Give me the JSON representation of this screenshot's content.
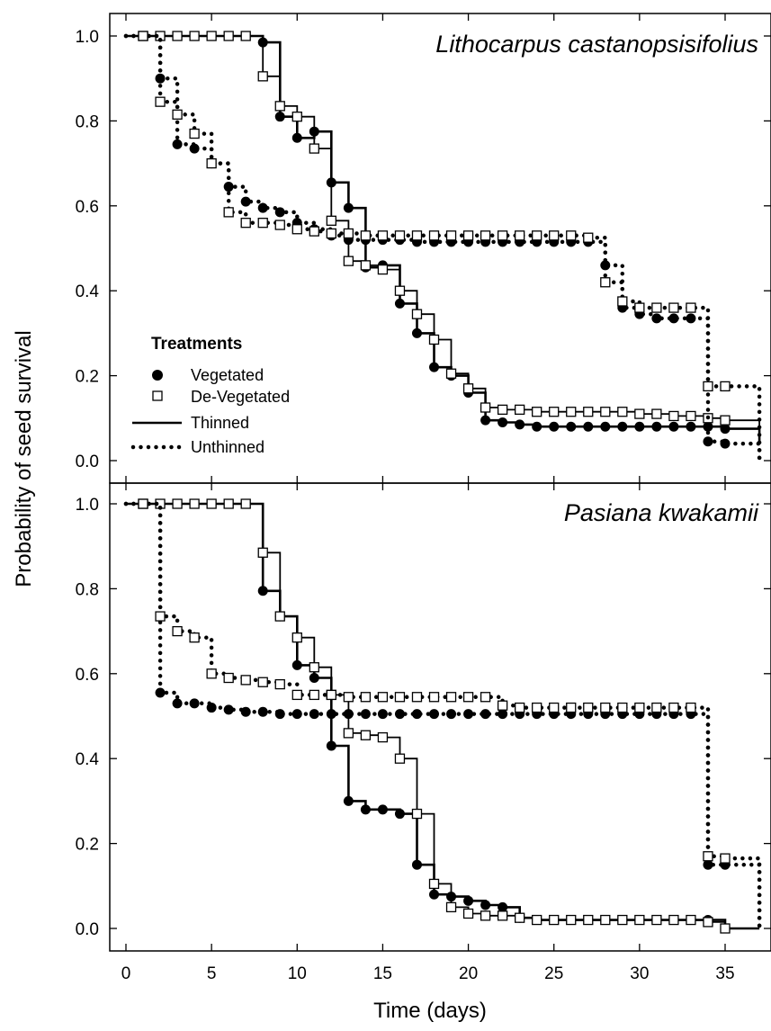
{
  "chart_data": [
    {
      "type": "line",
      "subtype": "step (Kaplan-Meier survival)",
      "title": "Lithocarpus castanopsisifolius",
      "xlabel": "Time (days)",
      "ylabel": "Probability of seed survival",
      "xlim": [
        -1,
        38
      ],
      "ylim": [
        -0.05,
        1.05
      ],
      "xticks": [
        0,
        5,
        10,
        15,
        20,
        25,
        30,
        35
      ],
      "xtick_labels": [
        "0",
        "5",
        "10",
        "15",
        "20",
        "25",
        "30",
        "35"
      ],
      "yticks": [
        0.0,
        0.2,
        0.4,
        0.6,
        0.8,
        1.0
      ],
      "ytick_labels": [
        "0.0",
        "0.2",
        "0.4",
        "0.6",
        "0.8",
        "1.0"
      ],
      "series": [
        {
          "name": "Vegetated Thinned",
          "x": [
            0,
            1,
            2,
            3,
            4,
            5,
            6,
            7,
            8,
            9,
            10,
            11,
            12,
            13,
            14,
            15,
            16,
            17,
            18,
            19,
            20,
            21,
            22,
            23,
            24,
            25,
            26,
            27,
            28,
            29,
            30,
            31,
            32,
            33,
            34,
            35,
            37
          ],
          "y": [
            1.0,
            1.0,
            1.0,
            1.0,
            1.0,
            1.0,
            1.0,
            1.0,
            0.985,
            0.81,
            0.76,
            0.775,
            0.655,
            0.595,
            0.455,
            0.46,
            0.37,
            0.3,
            0.22,
            0.2,
            0.16,
            0.095,
            0.09,
            0.085,
            0.08,
            0.08,
            0.08,
            0.08,
            0.08,
            0.08,
            0.08,
            0.08,
            0.08,
            0.08,
            0.08,
            0.075,
            0.04
          ]
        },
        {
          "name": "De-Vegetated Thinned",
          "x": [
            0,
            1,
            2,
            3,
            4,
            5,
            6,
            7,
            8,
            9,
            10,
            11,
            12,
            13,
            14,
            15,
            16,
            17,
            18,
            19,
            20,
            21,
            22,
            23,
            24,
            25,
            26,
            27,
            28,
            29,
            30,
            31,
            32,
            33,
            34,
            35,
            37
          ],
          "y": [
            1.0,
            1.0,
            1.0,
            1.0,
            1.0,
            1.0,
            1.0,
            1.0,
            0.905,
            0.835,
            0.81,
            0.735,
            0.565,
            0.47,
            0.46,
            0.45,
            0.4,
            0.345,
            0.285,
            0.205,
            0.17,
            0.125,
            0.12,
            0.12,
            0.115,
            0.115,
            0.115,
            0.115,
            0.115,
            0.115,
            0.11,
            0.11,
            0.105,
            0.105,
            0.1,
            0.095,
            0.055
          ]
        },
        {
          "name": "Vegetated Unthinned",
          "x": [
            0,
            1,
            2,
            3,
            4,
            5,
            6,
            7,
            8,
            9,
            10,
            11,
            12,
            13,
            14,
            15,
            16,
            17,
            18,
            19,
            20,
            21,
            22,
            23,
            24,
            25,
            26,
            27,
            28,
            29,
            30,
            31,
            32,
            33,
            34,
            35,
            37
          ],
          "y": [
            1.0,
            1.0,
            0.9,
            0.745,
            0.735,
            0.7,
            0.645,
            0.61,
            0.595,
            0.585,
            0.56,
            0.545,
            0.53,
            0.52,
            0.52,
            0.52,
            0.52,
            0.515,
            0.515,
            0.515,
            0.515,
            0.515,
            0.515,
            0.515,
            0.515,
            0.515,
            0.515,
            0.515,
            0.46,
            0.36,
            0.345,
            0.335,
            0.335,
            0.335,
            0.045,
            0.04,
            0.0
          ]
        },
        {
          "name": "De-Vegetated Unthinned",
          "x": [
            0,
            1,
            2,
            3,
            4,
            5,
            6,
            7,
            8,
            9,
            10,
            11,
            12,
            13,
            14,
            15,
            16,
            17,
            18,
            19,
            20,
            21,
            22,
            23,
            24,
            25,
            26,
            27,
            28,
            29,
            30,
            31,
            32,
            33,
            34,
            35,
            37
          ],
          "y": [
            1.0,
            1.0,
            0.845,
            0.815,
            0.77,
            0.7,
            0.585,
            0.56,
            0.56,
            0.555,
            0.545,
            0.54,
            0.535,
            0.535,
            0.53,
            0.53,
            0.53,
            0.53,
            0.53,
            0.53,
            0.53,
            0.53,
            0.53,
            0.53,
            0.53,
            0.53,
            0.53,
            0.525,
            0.42,
            0.375,
            0.36,
            0.36,
            0.36,
            0.36,
            0.175,
            0.175,
            0.0
          ]
        }
      ]
    },
    {
      "type": "line",
      "subtype": "step (Kaplan-Meier survival)",
      "title": "Pasiana kwakamii",
      "xlabel": "Time (days)",
      "ylabel": "Probability of seed survival",
      "xlim": [
        -1,
        38
      ],
      "ylim": [
        -0.05,
        1.05
      ],
      "xticks": [
        0,
        5,
        10,
        15,
        20,
        25,
        30,
        35
      ],
      "xtick_labels": [
        "0",
        "5",
        "10",
        "15",
        "20",
        "25",
        "30",
        "35"
      ],
      "yticks": [
        0.0,
        0.2,
        0.4,
        0.6,
        0.8,
        1.0
      ],
      "ytick_labels": [
        "0.0",
        "0.2",
        "0.4",
        "0.6",
        "0.8",
        "1.0"
      ],
      "series": [
        {
          "name": "Vegetated Thinned",
          "x": [
            0,
            1,
            2,
            3,
            4,
            5,
            6,
            7,
            8,
            9,
            10,
            11,
            12,
            13,
            14,
            15,
            16,
            17,
            18,
            19,
            20,
            21,
            22,
            23,
            24,
            25,
            26,
            27,
            28,
            29,
            30,
            31,
            32,
            33,
            34,
            35,
            37
          ],
          "y": [
            1.0,
            1.0,
            1.0,
            1.0,
            1.0,
            1.0,
            1.0,
            1.0,
            0.795,
            0.735,
            0.62,
            0.59,
            0.43,
            0.3,
            0.28,
            0.28,
            0.27,
            0.15,
            0.08,
            0.075,
            0.065,
            0.055,
            0.05,
            0.025,
            0.02,
            0.02,
            0.02,
            0.02,
            0.02,
            0.02,
            0.02,
            0.02,
            0.02,
            0.02,
            0.02,
            0.0,
            0.0
          ]
        },
        {
          "name": "De-Vegetated Thinned",
          "x": [
            0,
            1,
            2,
            3,
            4,
            5,
            6,
            7,
            8,
            9,
            10,
            11,
            12,
            13,
            14,
            15,
            16,
            17,
            18,
            19,
            20,
            21,
            22,
            23,
            24,
            25,
            26,
            27,
            28,
            29,
            30,
            31,
            32,
            33,
            34,
            35,
            37
          ],
          "y": [
            1.0,
            1.0,
            1.0,
            1.0,
            1.0,
            1.0,
            1.0,
            1.0,
            0.885,
            0.735,
            0.685,
            0.615,
            0.55,
            0.46,
            0.455,
            0.45,
            0.4,
            0.27,
            0.105,
            0.05,
            0.035,
            0.03,
            0.03,
            0.025,
            0.02,
            0.02,
            0.02,
            0.02,
            0.02,
            0.02,
            0.02,
            0.02,
            0.02,
            0.02,
            0.015,
            0.0,
            0.0
          ]
        },
        {
          "name": "Vegetated Unthinned",
          "x": [
            0,
            1,
            2,
            3,
            4,
            5,
            6,
            7,
            8,
            9,
            10,
            11,
            12,
            13,
            14,
            15,
            16,
            17,
            18,
            19,
            20,
            21,
            22,
            23,
            24,
            25,
            26,
            27,
            28,
            29,
            30,
            31,
            32,
            33,
            34,
            35,
            37
          ],
          "y": [
            1.0,
            1.0,
            0.555,
            0.53,
            0.53,
            0.52,
            0.515,
            0.51,
            0.51,
            0.505,
            0.505,
            0.505,
            0.505,
            0.505,
            0.505,
            0.505,
            0.505,
            0.505,
            0.505,
            0.505,
            0.505,
            0.505,
            0.505,
            0.505,
            0.505,
            0.505,
            0.505,
            0.505,
            0.505,
            0.505,
            0.505,
            0.505,
            0.505,
            0.505,
            0.15,
            0.15,
            0.0
          ]
        },
        {
          "name": "De-Vegetated Unthinned",
          "x": [
            0,
            1,
            2,
            3,
            4,
            5,
            6,
            7,
            8,
            9,
            10,
            11,
            12,
            13,
            14,
            15,
            16,
            17,
            18,
            19,
            20,
            21,
            22,
            23,
            24,
            25,
            26,
            27,
            28,
            29,
            30,
            31,
            32,
            33,
            34,
            35,
            37
          ],
          "y": [
            1.0,
            1.0,
            0.735,
            0.7,
            0.685,
            0.6,
            0.59,
            0.585,
            0.58,
            0.575,
            0.55,
            0.55,
            0.55,
            0.545,
            0.545,
            0.545,
            0.545,
            0.545,
            0.545,
            0.545,
            0.545,
            0.545,
            0.525,
            0.52,
            0.52,
            0.52,
            0.52,
            0.52,
            0.52,
            0.52,
            0.52,
            0.52,
            0.52,
            0.52,
            0.17,
            0.165,
            0.0
          ]
        }
      ]
    }
  ],
  "legend": {
    "title": "Treatments",
    "entries": [
      {
        "label": "Vegetated",
        "symbol": "filled-circle"
      },
      {
        "label": "De-Vegetated",
        "symbol": "open-square"
      },
      {
        "label": "Thinned",
        "symbol": "solid-line"
      },
      {
        "label": "Unthinned",
        "symbol": "dotted-line"
      }
    ],
    "placement": "lower-left of top panel"
  },
  "style": {
    "line_color": "#000000",
    "marker_fill": "#000000",
    "open_marker_fill": "#ffffff"
  }
}
